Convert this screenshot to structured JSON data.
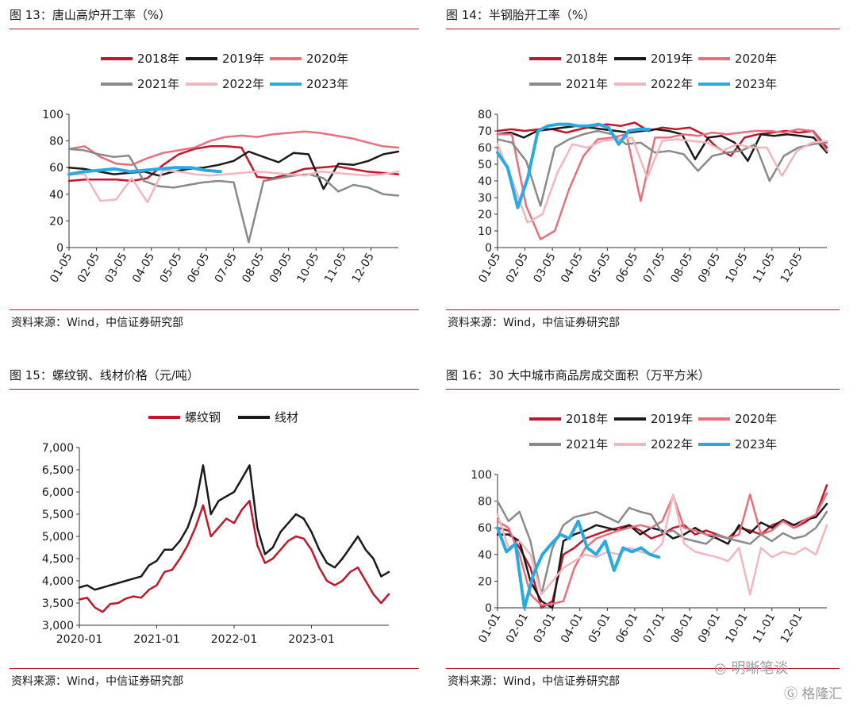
{
  "source_text": "资料来源：Wind，中信证券研究部",
  "watermark_a": "明晰笔谈",
  "watermark_b": "格隆汇",
  "chart_data": [
    {
      "id": "p13",
      "type": "line",
      "title": "图 13：唐山高炉开工率（%）",
      "x_ticks": [
        "01-05",
        "02-05",
        "03-05",
        "04-05",
        "05-05",
        "06-05",
        "07-05",
        "08-05",
        "09-05",
        "10-05",
        "11-05",
        "12-05"
      ],
      "ylim": [
        0,
        100
      ],
      "y_ticks": [
        "0",
        "20",
        "40",
        "60",
        "80",
        "100"
      ],
      "grid": false,
      "legend": "top",
      "series": [
        {
          "name": "2018年",
          "color": "#c0172b",
          "values": [
            50,
            51,
            51,
            51,
            50,
            52,
            62,
            70,
            74,
            76,
            76,
            75,
            53,
            52,
            55,
            59,
            60,
            61,
            59,
            57,
            56,
            55
          ]
        },
        {
          "name": "2019年",
          "color": "#1a1a1a",
          "values": [
            60,
            59,
            57,
            55,
            56,
            57,
            54,
            57,
            59,
            60,
            62,
            65,
            72,
            68,
            64,
            71,
            70,
            44,
            63,
            62,
            65,
            70,
            72
          ]
        },
        {
          "name": "2020年",
          "color": "#e86f7c",
          "values": [
            74,
            76,
            68,
            63,
            62,
            67,
            71,
            73,
            75,
            80,
            83,
            84,
            83,
            85,
            86,
            87,
            86,
            84,
            82,
            79,
            76,
            75
          ]
        },
        {
          "name": "2021年",
          "color": "#8a8a8a",
          "values": [
            74,
            73,
            70,
            68,
            69,
            50,
            46,
            45,
            47,
            49,
            50,
            49,
            4,
            50,
            52,
            54,
            55,
            52,
            42,
            47,
            45,
            40,
            39
          ]
        },
        {
          "name": "2022年",
          "color": "#f4b6bd",
          "values": [
            55,
            55,
            35,
            36,
            52,
            34,
            58,
            57,
            55,
            54,
            55,
            56,
            57,
            56,
            55,
            54,
            57,
            56,
            55,
            54,
            55,
            57
          ]
        },
        {
          "name": "2023年",
          "color": "#29abe2",
          "values": [
            55,
            57,
            58,
            59,
            57,
            58,
            59,
            60,
            60,
            58,
            57
          ]
        }
      ]
    },
    {
      "id": "p14",
      "type": "line",
      "title": "图 14：半钢胎开工率（%）",
      "x_ticks": [
        "01-05",
        "02-05",
        "03-05",
        "04-05",
        "05-05",
        "06-05",
        "07-05",
        "08-05",
        "09-05",
        "10-05",
        "11-05",
        "12-05"
      ],
      "ylim": [
        0,
        80
      ],
      "y_ticks": [
        "0",
        "10",
        "20",
        "30",
        "40",
        "50",
        "60",
        "70",
        "80"
      ],
      "grid": false,
      "legend": "top",
      "series": [
        {
          "name": "2018年",
          "color": "#c0172b",
          "values": [
            70,
            71,
            70,
            71,
            71,
            69,
            71,
            73,
            74,
            73,
            75,
            70,
            72,
            71,
            72,
            68,
            60,
            55,
            66,
            68,
            69,
            70,
            69,
            70,
            60
          ]
        },
        {
          "name": "2019年",
          "color": "#1a1a1a",
          "values": [
            68,
            69,
            66,
            70,
            71,
            72,
            73,
            72,
            71,
            70,
            69,
            70,
            71,
            70,
            68,
            53,
            66,
            67,
            63,
            52,
            68,
            67,
            68,
            67,
            66,
            57
          ]
        },
        {
          "name": "2020年",
          "color": "#e86f7c",
          "values": [
            68,
            68,
            25,
            5,
            10,
            35,
            55,
            65,
            66,
            68,
            28,
            66,
            66,
            68,
            67,
            69,
            68,
            69,
            70,
            70,
            69,
            71,
            70,
            58
          ]
        },
        {
          "name": "2021年",
          "color": "#8a8a8a",
          "values": [
            65,
            63,
            52,
            25,
            60,
            65,
            68,
            70,
            68,
            62,
            63,
            57,
            58,
            56,
            46,
            55,
            57,
            58,
            62,
            40,
            55,
            60,
            62,
            63
          ]
        },
        {
          "name": "2022年",
          "color": "#f4b6bd",
          "values": [
            62,
            40,
            15,
            20,
            45,
            62,
            60,
            64,
            65,
            66,
            42,
            64,
            65,
            64,
            63,
            58,
            62,
            60,
            60,
            43,
            58,
            63,
            64
          ]
        },
        {
          "name": "2023年",
          "color": "#29abe2",
          "values": [
            57,
            48,
            24,
            42,
            70,
            73,
            74,
            74,
            73,
            73,
            74,
            72,
            62,
            70,
            71,
            71
          ]
        }
      ]
    },
    {
      "id": "p15",
      "type": "line",
      "title": "图 15：螺纹钢、线材价格（元/吨）",
      "x_ticks": [
        "2020-01",
        "2021-01",
        "2022-01",
        "2023-01"
      ],
      "ylim": [
        3000,
        7000
      ],
      "y_ticks": [
        "3,000",
        "3,500",
        "4,000",
        "4,500",
        "5,000",
        "5,500",
        "6,000",
        "6,500",
        "7,000"
      ],
      "grid": false,
      "legend": "top",
      "series": [
        {
          "name": "螺纹钢",
          "color": "#c0172b",
          "values": [
            3580,
            3620,
            3400,
            3300,
            3480,
            3500,
            3600,
            3650,
            3620,
            3800,
            3900,
            4200,
            4250,
            4500,
            4800,
            5200,
            5700,
            5000,
            5200,
            5400,
            5300,
            5600,
            5800,
            4800,
            4400,
            4500,
            4700,
            4900,
            5000,
            4950,
            4700,
            4300,
            4000,
            3900,
            4000,
            4200,
            4300,
            4000,
            3700,
            3500,
            3700
          ]
        },
        {
          "name": "线材",
          "color": "#1a1a1a",
          "values": [
            3850,
            3900,
            3800,
            3850,
            3900,
            3950,
            4000,
            4050,
            4100,
            4350,
            4450,
            4700,
            4700,
            4900,
            5200,
            5700,
            6600,
            5500,
            5800,
            5900,
            6000,
            6300,
            6600,
            5200,
            4600,
            4750,
            5100,
            5300,
            5500,
            5400,
            5100,
            4700,
            4400,
            4300,
            4500,
            4750,
            5000,
            4700,
            4500,
            4100,
            4200
          ]
        }
      ]
    },
    {
      "id": "p16",
      "type": "line",
      "title": "图 16：30 大中城市商品房成交面积（万平方米）",
      "x_ticks": [
        "01-01",
        "02-01",
        "03-01",
        "04-01",
        "05-01",
        "06-01",
        "07-01",
        "08-01",
        "09-01",
        "10-01",
        "11-01",
        "12-01"
      ],
      "ylim": [
        0,
        100
      ],
      "y_ticks": [
        "0",
        "20",
        "40",
        "60",
        "80",
        "100"
      ],
      "grid": false,
      "legend": "top",
      "series": [
        {
          "name": "2018年",
          "color": "#c0172b",
          "values": [
            60,
            58,
            45,
            30,
            0,
            5,
            40,
            45,
            52,
            55,
            58,
            60,
            62,
            58,
            52,
            55,
            60,
            62,
            55,
            58,
            55,
            52,
            60,
            58,
            55,
            62,
            65,
            60,
            64,
            70,
            92
          ]
        },
        {
          "name": "2019年",
          "color": "#1a1a1a",
          "values": [
            55,
            55,
            50,
            20,
            5,
            0,
            50,
            55,
            58,
            62,
            60,
            58,
            62,
            55,
            60,
            58,
            52,
            55,
            60,
            55,
            52,
            48,
            62,
            56,
            64,
            60,
            66,
            62,
            66,
            68,
            78
          ]
        },
        {
          "name": "2020年",
          "color": "#e86f7c",
          "values": [
            65,
            60,
            40,
            10,
            2,
            3,
            5,
            30,
            45,
            52,
            55,
            58,
            60,
            62,
            60,
            65,
            84,
            60,
            58,
            55,
            54,
            52,
            55,
            85,
            55,
            58,
            65,
            60,
            66,
            70,
            86
          ]
        },
        {
          "name": "2021年",
          "color": "#8a8a8a",
          "values": [
            80,
            65,
            72,
            50,
            10,
            45,
            62,
            68,
            70,
            72,
            68,
            64,
            75,
            72,
            70,
            56,
            58,
            52,
            50,
            48,
            55,
            52,
            50,
            48,
            55,
            50,
            56,
            52,
            54,
            60,
            72
          ]
        },
        {
          "name": "2022年",
          "color": "#f4b6bd",
          "values": [
            70,
            45,
            50,
            40,
            10,
            20,
            30,
            35,
            40,
            38,
            42,
            40,
            45,
            42,
            40,
            48,
            85,
            48,
            42,
            40,
            38,
            35,
            45,
            10,
            45,
            38,
            42,
            40,
            45,
            40,
            62
          ]
        },
        {
          "name": "2023年",
          "color": "#29abe2",
          "values": [
            60,
            42,
            48,
            0,
            25,
            40,
            48,
            55,
            52,
            65,
            45,
            40,
            50,
            28,
            45,
            42,
            45,
            40,
            38
          ]
        }
      ]
    }
  ]
}
